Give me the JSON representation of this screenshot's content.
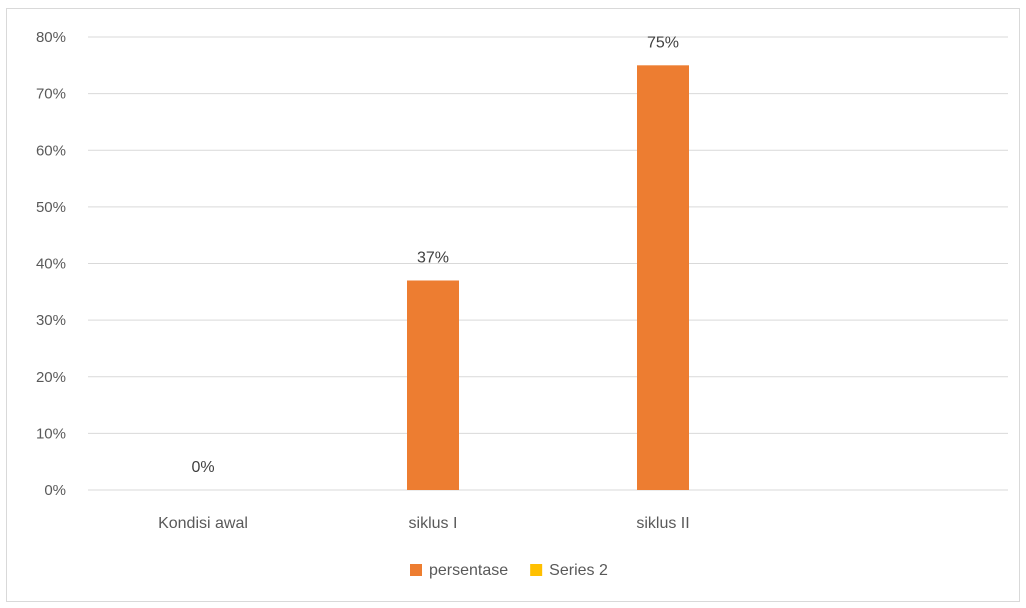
{
  "chart_data": {
    "type": "bar",
    "categories": [
      "Kondisi awal",
      "siklus I",
      "siklus II"
    ],
    "series": [
      {
        "name": "persentase",
        "values": [
          0,
          37,
          75
        ],
        "data_labels": [
          "0%",
          "37%",
          "75%"
        ],
        "color": "#ED7D31"
      },
      {
        "name": "Series 2",
        "values": [
          null,
          null,
          null
        ],
        "color": "#FFC000"
      }
    ],
    "ylim": [
      0,
      80
    ],
    "y_ticks": [
      0,
      10,
      20,
      30,
      40,
      50,
      60,
      70,
      80
    ],
    "y_tick_labels": [
      "0%",
      "10%",
      "20%",
      "30%",
      "40%",
      "50%",
      "60%",
      "70%",
      "80%"
    ],
    "grid": true,
    "gridline_color": "#d9d9d9",
    "legend_position": "bottom",
    "title": "",
    "xlabel": "",
    "ylabel": ""
  }
}
